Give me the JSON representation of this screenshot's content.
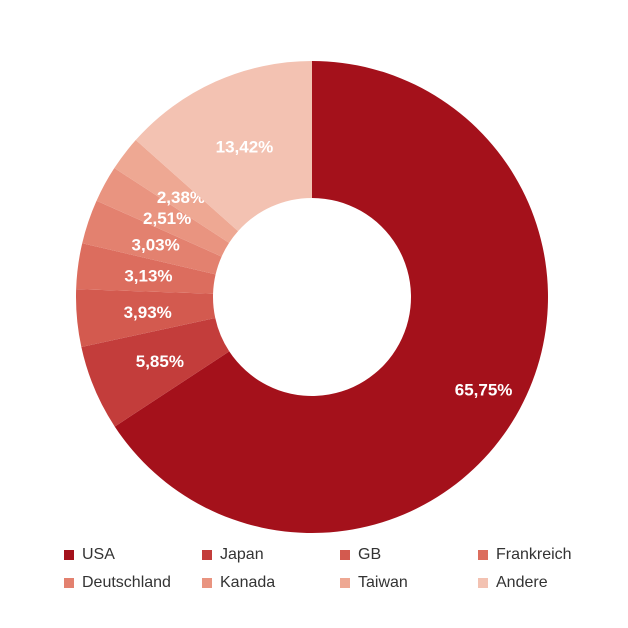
{
  "chart_data": {
    "type": "pie",
    "donut": true,
    "title": "",
    "legend_position": "bottom",
    "slices": [
      {
        "label": "USA",
        "value": 65.75,
        "value_label": "65,75%",
        "color": "#a4111b"
      },
      {
        "label": "Japan",
        "value": 5.85,
        "value_label": "5,85%",
        "color": "#c33d3b"
      },
      {
        "label": "GB",
        "value": 3.93,
        "value_label": "3,93%",
        "color": "#d35a4f"
      },
      {
        "label": "Frankreich",
        "value": 3.13,
        "value_label": "3,13%",
        "color": "#dc6d5e"
      },
      {
        "label": "Deutschland",
        "value": 3.03,
        "value_label": "3,03%",
        "color": "#e3816f"
      },
      {
        "label": "Kanada",
        "value": 2.51,
        "value_label": "2,51%",
        "color": "#e99480"
      },
      {
        "label": "Taiwan",
        "value": 2.38,
        "value_label": "2,38%",
        "color": "#eea893"
      },
      {
        "label": "Andere",
        "value": 13.42,
        "value_label": "13,42%",
        "color": "#f3c2b2"
      }
    ]
  }
}
